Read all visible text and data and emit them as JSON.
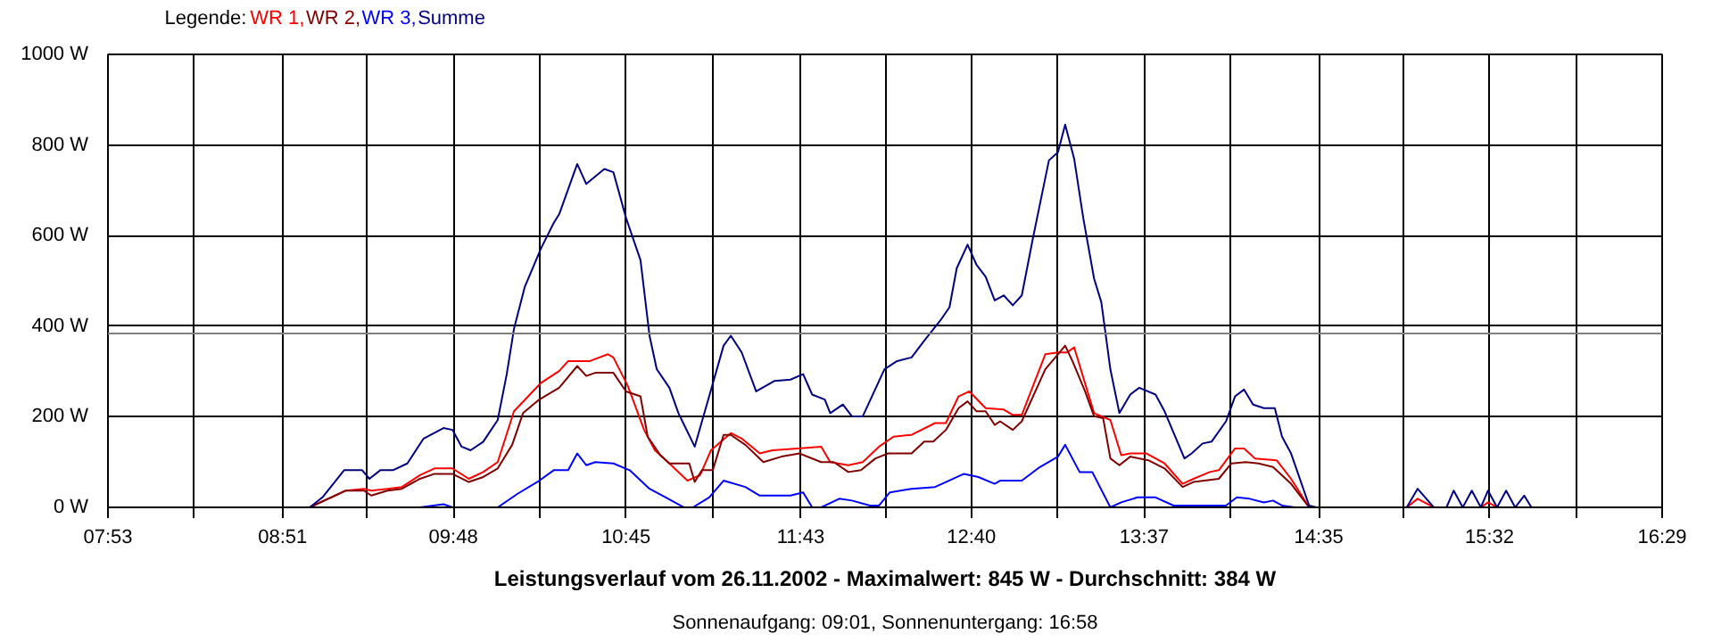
{
  "chart_data": {
    "type": "line",
    "title": "Leistungsverlauf vom 26.11.2002 - Maximalwert: 845 W - Durchschnitt: 384 W",
    "subtitle": "Sonnenaufgang: 09:01, Sonnenuntergang: 16:58",
    "legend_title": "Legende:",
    "legend": "top left",
    "grid": true,
    "line_style": "solid",
    "xlim": [
      7.8833,
      16.4833
    ],
    "xticks": [
      {
        "value": 7.8833,
        "label": "07:53"
      },
      {
        "value": 8.3611,
        "label": null
      },
      {
        "value": 8.85,
        "label": "08:51"
      },
      {
        "value": 9.3167,
        "label": null
      },
      {
        "value": 9.7944,
        "label": "09:48"
      },
      {
        "value": 10.2722,
        "label": null
      },
      {
        "value": 10.75,
        "label": "10:45"
      },
      {
        "value": 11.2278,
        "label": null
      },
      {
        "value": 11.7167,
        "label": "11:43"
      },
      {
        "value": 12.1833,
        "label": null
      },
      {
        "value": 12.6611,
        "label": "12:40"
      },
      {
        "value": 13.1389,
        "label": null
      },
      {
        "value": 13.6167,
        "label": "13:37"
      },
      {
        "value": 14.0944,
        "label": null
      },
      {
        "value": 14.5833,
        "label": "14:35"
      },
      {
        "value": 15.05,
        "label": null
      },
      {
        "value": 15.5278,
        "label": "15:32"
      },
      {
        "value": 16.0056,
        "label": null
      },
      {
        "value": 16.4833,
        "label": "16:29"
      }
    ],
    "ylim": [
      0,
      1000
    ],
    "yticks": [
      {
        "value": 0,
        "label": "0 W"
      },
      {
        "value": 200,
        "label": "200 W"
      },
      {
        "value": 400,
        "label": "400 W"
      },
      {
        "value": 600,
        "label": "600 W"
      },
      {
        "value": 800,
        "label": "800 W"
      },
      {
        "value": 1000,
        "label": "1000 W"
      }
    ],
    "ref_lines": [
      {
        "axis": "y",
        "value": 384,
        "color": "#808080"
      }
    ],
    "series": [
      {
        "name": "WR 1,",
        "color": "#ff0000",
        "x": [
          9.0,
          9.2,
          9.3,
          9.34,
          9.43,
          9.51,
          9.61,
          9.69,
          9.79,
          9.88,
          9.96,
          10.04,
          10.13,
          10.28,
          10.38,
          10.43,
          10.55,
          10.65,
          10.68,
          10.76,
          10.85,
          10.91,
          10.99,
          11.09,
          11.16,
          11.22,
          11.33,
          11.39,
          11.49,
          11.56,
          11.7,
          11.83,
          11.88,
          11.98,
          12.06,
          12.15,
          12.23,
          12.33,
          12.46,
          12.52,
          12.59,
          12.65,
          12.74,
          12.84,
          12.89,
          12.94,
          13.07,
          13.14,
          13.19,
          13.23,
          13.34,
          13.43,
          13.49,
          13.54,
          13.63,
          13.73,
          13.83,
          13.89,
          13.98,
          14.03,
          14.12,
          14.17,
          14.23,
          14.35,
          14.43,
          14.53,
          14.57,
          14.8,
          15.07,
          15.13,
          15.22,
          15.48,
          15.52,
          15.57
        ],
        "values": [
          0,
          37,
          41,
          37,
          41,
          45,
          71,
          86,
          86,
          63,
          78,
          100,
          212,
          275,
          301,
          323,
          323,
          338,
          331,
          268,
          171,
          126,
          97,
          59,
          71,
          126,
          164,
          152,
          119,
          126,
          130,
          134,
          100,
          93,
          100,
          134,
          156,
          160,
          186,
          186,
          245,
          256,
          219,
          216,
          204,
          204,
          338,
          342,
          342,
          353,
          208,
          193,
          115,
          119,
          119,
          97,
          52,
          63,
          78,
          82,
          130,
          130,
          108,
          104,
          63,
          0,
          0,
          null,
          0,
          19,
          0,
          0,
          11,
          0
        ]
      },
      {
        "name": "WR 2,",
        "color": "#800000",
        "x": [
          9.0,
          9.2,
          9.3,
          9.34,
          9.43,
          9.51,
          9.61,
          9.69,
          9.79,
          9.88,
          9.96,
          10.04,
          10.12,
          10.18,
          10.27,
          10.38,
          10.48,
          10.53,
          10.58,
          10.68,
          10.75,
          10.83,
          10.87,
          10.94,
          10.99,
          11.1,
          11.13,
          11.17,
          11.23,
          11.29,
          11.33,
          11.41,
          11.51,
          11.61,
          11.71,
          11.83,
          11.9,
          11.98,
          12.05,
          12.13,
          12.2,
          12.33,
          12.4,
          12.45,
          12.52,
          12.59,
          12.64,
          12.69,
          12.74,
          12.79,
          12.82,
          12.89,
          12.94,
          13.07,
          13.14,
          13.18,
          13.22,
          13.29,
          13.34,
          13.39,
          13.43,
          13.48,
          13.54,
          13.64,
          13.73,
          13.83,
          13.89,
          14.03,
          14.1,
          14.18,
          14.25,
          14.33,
          14.43,
          14.53,
          14.57
        ],
        "values": [
          0,
          37,
          37,
          26,
          37,
          41,
          63,
          74,
          74,
          56,
          67,
          86,
          138,
          208,
          238,
          264,
          312,
          290,
          297,
          297,
          256,
          245,
          156,
          115,
          97,
          97,
          56,
          82,
          82,
          160,
          160,
          138,
          100,
          112,
          119,
          100,
          100,
          78,
          82,
          108,
          119,
          119,
          145,
          145,
          171,
          219,
          234,
          212,
          212,
          182,
          190,
          171,
          190,
          305,
          338,
          357,
          323,
          256,
          201,
          197,
          108,
          93,
          112,
          104,
          86,
          45,
          56,
          63,
          97,
          100,
          97,
          89,
          52,
          0,
          0
        ]
      },
      {
        "name": "WR 3,",
        "color": "#0000ff",
        "x": [
          9.61,
          9.74,
          9.79,
          10.04,
          10.15,
          10.27,
          10.35,
          10.43,
          10.48,
          10.53,
          10.58,
          10.68,
          10.77,
          10.88,
          10.97,
          11.07,
          11.12,
          11.21,
          11.29,
          11.41,
          11.49,
          11.66,
          11.73,
          11.78,
          11.83,
          11.93,
          12.0,
          12.1,
          12.15,
          12.21,
          12.33,
          12.46,
          12.52,
          12.62,
          12.7,
          12.79,
          12.82,
          12.94,
          13.04,
          13.14,
          13.18,
          13.22,
          13.26,
          13.33,
          13.43,
          13.49,
          13.58,
          13.68,
          13.78,
          14.07,
          14.13,
          14.2,
          14.28,
          14.33,
          14.38,
          14.45
        ],
        "values": [
          0,
          7,
          0,
          0,
          30,
          59,
          82,
          82,
          119,
          93,
          100,
          97,
          82,
          41,
          22,
          0,
          0,
          22,
          59,
          45,
          26,
          26,
          33,
          0,
          0,
          19,
          15,
          4,
          4,
          33,
          41,
          45,
          56,
          74,
          67,
          52,
          59,
          59,
          89,
          112,
          138,
          108,
          78,
          78,
          0,
          11,
          22,
          22,
          4,
          4,
          22,
          19,
          11,
          15,
          4,
          0
        ]
      },
      {
        "name": "Summe",
        "color": "#000080",
        "x": [
          9.0,
          9.07,
          9.19,
          9.29,
          9.33,
          9.39,
          9.46,
          9.54,
          9.63,
          9.74,
          9.79,
          9.84,
          9.89,
          9.96,
          10.04,
          10.09,
          10.13,
          10.19,
          10.28,
          10.35,
          10.38,
          10.48,
          10.53,
          10.63,
          10.68,
          10.75,
          10.83,
          10.88,
          10.92,
          10.99,
          11.04,
          11.13,
          11.21,
          11.29,
          11.33,
          11.39,
          11.47,
          11.57,
          11.66,
          11.73,
          11.78,
          11.85,
          11.88,
          11.95,
          12.0,
          12.06,
          12.18,
          12.25,
          12.33,
          12.4,
          12.49,
          12.54,
          12.58,
          12.64,
          12.69,
          12.74,
          12.79,
          12.84,
          12.89,
          12.94,
          13.0,
          13.09,
          13.14,
          13.18,
          13.23,
          13.28,
          13.34,
          13.38,
          13.43,
          13.48,
          13.54,
          13.59,
          13.68,
          13.73,
          13.84,
          13.88,
          13.94,
          13.99,
          14.07,
          14.12,
          14.17,
          14.22,
          14.28,
          14.34,
          14.38,
          14.43,
          14.53,
          14.57,
          14.8,
          15.07,
          15.13,
          15.22,
          15.29,
          15.33,
          15.38,
          15.43,
          15.48,
          15.52,
          15.57,
          15.62,
          15.67,
          15.72,
          15.76
        ],
        "values": [
          0,
          22,
          82,
          82,
          63,
          82,
          82,
          97,
          152,
          175,
          171,
          134,
          126,
          145,
          193,
          294,
          394,
          487,
          572,
          628,
          647,
          758,
          714,
          747,
          740,
          639,
          546,
          379,
          305,
          264,
          208,
          134,
          245,
          357,
          379,
          342,
          256,
          279,
          282,
          294,
          249,
          238,
          208,
          227,
          201,
          201,
          305,
          323,
          331,
          368,
          413,
          442,
          528,
          580,
          535,
          509,
          457,
          468,
          446,
          468,
          591,
          766,
          784,
          845,
          769,
          639,
          505,
          453,
          305,
          208,
          249,
          264,
          249,
          212,
          108,
          119,
          141,
          145,
          190,
          245,
          260,
          227,
          219,
          219,
          156,
          119,
          4,
          0,
          null,
          0,
          41,
          0,
          0,
          37,
          0,
          37,
          0,
          37,
          0,
          37,
          0,
          26,
          0
        ]
      }
    ]
  }
}
